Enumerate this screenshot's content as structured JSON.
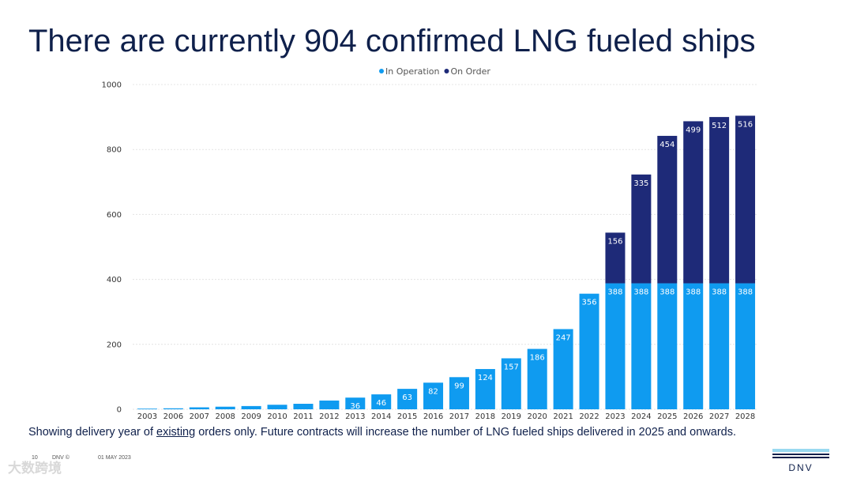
{
  "slide": {
    "title": "There are currently 904 confirmed LNG fueled ships",
    "caption_before": "Showing delivery year of ",
    "caption_underlined": "existing",
    "caption_after": " orders only. Future contracts will increase the number of LNG fueled ships delivered in 2025 and onwards.",
    "footer_page": "10",
    "footer_org": "DNV ©",
    "footer_date": "01 MAY 2023",
    "watermark": "大数跨境",
    "logo_text": "DNV"
  },
  "colors": {
    "title": "#0f204b",
    "in_operation": "#0f9bf0",
    "on_order": "#1e2a78",
    "logo_light": "#99d9f0",
    "logo_mid": "#3f9c35"
  },
  "chart_data": {
    "type": "bar",
    "stacked": true,
    "categories": [
      "2003",
      "2006",
      "2007",
      "2008",
      "2009",
      "2010",
      "2011",
      "2012",
      "2013",
      "2014",
      "2015",
      "2016",
      "2017",
      "2018",
      "2019",
      "2020",
      "2021",
      "2022",
      "2023",
      "2024",
      "2025",
      "2026",
      "2027",
      "2028"
    ],
    "series": [
      {
        "name": "In Operation",
        "color": "#0f9bf0",
        "values": [
          2,
          3,
          6,
          8,
          10,
          14,
          17,
          27,
          36,
          46,
          63,
          82,
          99,
          124,
          157,
          186,
          247,
          356,
          388,
          388,
          388,
          388,
          388,
          388
        ],
        "labels": [
          "",
          "",
          "",
          "",
          "",
          "",
          "",
          "",
          "36",
          "46",
          "63",
          "82",
          "99",
          "124",
          "157",
          "186",
          "247",
          "356",
          "388",
          "388",
          "388",
          "388",
          "388",
          "388"
        ]
      },
      {
        "name": "On Order",
        "color": "#1e2a78",
        "values": [
          0,
          0,
          0,
          0,
          0,
          0,
          0,
          0,
          0,
          0,
          0,
          0,
          0,
          0,
          0,
          0,
          0,
          0,
          156,
          335,
          454,
          499,
          512,
          516
        ],
        "labels": [
          "",
          "",
          "",
          "",
          "",
          "",
          "",
          "",
          "",
          "",
          "",
          "",
          "",
          "",
          "",
          "",
          "",
          "",
          "156",
          "335",
          "454",
          "499",
          "512",
          "516"
        ]
      }
    ],
    "y_ticks": [
      "0",
      "200",
      "400",
      "600",
      "800",
      "1000"
    ],
    "ylim": [
      0,
      1000
    ],
    "grid": true,
    "legend_position": "top-center",
    "title": "",
    "xlabel": "",
    "ylabel": ""
  }
}
